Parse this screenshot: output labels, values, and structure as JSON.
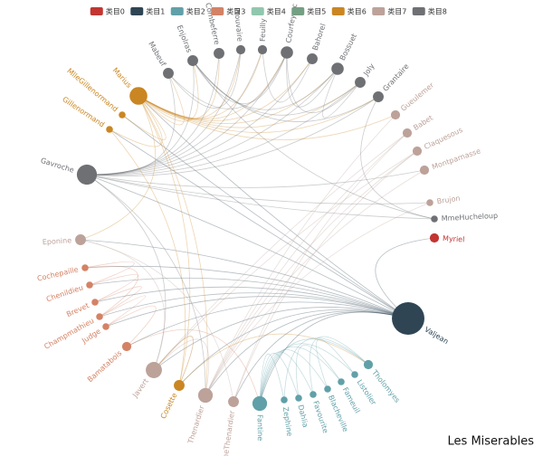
{
  "chart_data": {
    "type": "graph",
    "title": "Les Miserables",
    "categories": [
      {
        "name": "类目0",
        "color": "#c23531"
      },
      {
        "name": "类目1",
        "color": "#2f4554"
      },
      {
        "name": "类目2",
        "color": "#61a0a8"
      },
      {
        "name": "类目3",
        "color": "#d48265"
      },
      {
        "name": "类目4",
        "color": "#91c7ae"
      },
      {
        "name": "类目5",
        "color": "#749f83"
      },
      {
        "name": "类目6",
        "color": "#ca8622"
      },
      {
        "name": "类目7",
        "color": "#bda29a"
      },
      {
        "name": "类目8",
        "color": "#6e7074"
      }
    ],
    "nodes": [
      {
        "name": "Myriel",
        "category": 0,
        "value": 6
      },
      {
        "name": "MmeHucheloup",
        "category": 8,
        "value": 3
      },
      {
        "name": "Brujon",
        "category": 7,
        "value": 3
      },
      {
        "name": "Montparnasse",
        "category": 7,
        "value": 6
      },
      {
        "name": "Claquesous",
        "category": 7,
        "value": 6
      },
      {
        "name": "Babet",
        "category": 7,
        "value": 6
      },
      {
        "name": "Gueulemer",
        "category": 7,
        "value": 6
      },
      {
        "name": "Grantaire",
        "category": 8,
        "value": 8
      },
      {
        "name": "Joly",
        "category": 8,
        "value": 8
      },
      {
        "name": "Bossuet",
        "category": 8,
        "value": 10
      },
      {
        "name": "Bahorel",
        "category": 8,
        "value": 8
      },
      {
        "name": "Courfeyrac",
        "category": 8,
        "value": 10
      },
      {
        "name": "Feuilly",
        "category": 8,
        "value": 6
      },
      {
        "name": "Prouvaire",
        "category": 8,
        "value": 6
      },
      {
        "name": "Combeferre",
        "category": 8,
        "value": 8
      },
      {
        "name": "Enjolras",
        "category": 8,
        "value": 8
      },
      {
        "name": "Mabeuf",
        "category": 8,
        "value": 8
      },
      {
        "name": "Marius",
        "category": 6,
        "value": 17
      },
      {
        "name": "MlleGillenormand",
        "category": 6,
        "value": 3
      },
      {
        "name": "Gillenormand",
        "category": 6,
        "value": 3
      },
      {
        "name": "Gavroche",
        "category": 8,
        "value": 20
      },
      {
        "name": "Eponine",
        "category": 7,
        "value": 8
      },
      {
        "name": "Cochepaille",
        "category": 3,
        "value": 3
      },
      {
        "name": "Chenildieu",
        "category": 3,
        "value": 3
      },
      {
        "name": "Brevet",
        "category": 3,
        "value": 3
      },
      {
        "name": "Champmathieu",
        "category": 3,
        "value": 3
      },
      {
        "name": "Judge",
        "category": 3,
        "value": 3
      },
      {
        "name": "Bamatabois",
        "category": 3,
        "value": 6
      },
      {
        "name": "Javert",
        "category": 7,
        "value": 15
      },
      {
        "name": "Cosette",
        "category": 6,
        "value": 8
      },
      {
        "name": "Thenardier",
        "category": 7,
        "value": 13
      },
      {
        "name": "MmeThenardier",
        "category": 7,
        "value": 8
      },
      {
        "name": "Fantine",
        "category": 2,
        "value": 13
      },
      {
        "name": "Zephine",
        "category": 2,
        "value": 3
      },
      {
        "name": "Dahlia",
        "category": 2,
        "value": 3
      },
      {
        "name": "Favourite",
        "category": 2,
        "value": 3
      },
      {
        "name": "Blacheville",
        "category": 2,
        "value": 3
      },
      {
        "name": "Fameuil",
        "category": 2,
        "value": 3
      },
      {
        "name": "Listolier",
        "category": 2,
        "value": 3
      },
      {
        "name": "Tholomyes",
        "category": 2,
        "value": 6
      },
      {
        "name": "Valjean",
        "category": 1,
        "value": 36
      }
    ],
    "links": [
      [
        40,
        0
      ],
      [
        40,
        28
      ],
      [
        40,
        29
      ],
      [
        40,
        30
      ],
      [
        40,
        31
      ],
      [
        40,
        32
      ],
      [
        40,
        17
      ],
      [
        40,
        20
      ],
      [
        40,
        22
      ],
      [
        40,
        23
      ],
      [
        40,
        24
      ],
      [
        40,
        25
      ],
      [
        40,
        26
      ],
      [
        40,
        27
      ],
      [
        40,
        18
      ],
      [
        40,
        19
      ],
      [
        40,
        21
      ],
      [
        20,
        7
      ],
      [
        20,
        8
      ],
      [
        20,
        9
      ],
      [
        20,
        10
      ],
      [
        20,
        11
      ],
      [
        20,
        12
      ],
      [
        20,
        13
      ],
      [
        20,
        14
      ],
      [
        20,
        15
      ],
      [
        20,
        16
      ],
      [
        20,
        1
      ],
      [
        20,
        2
      ],
      [
        20,
        3
      ],
      [
        20,
        28
      ],
      [
        20,
        30
      ],
      [
        17,
        7
      ],
      [
        17,
        8
      ],
      [
        17,
        9
      ],
      [
        17,
        10
      ],
      [
        17,
        11
      ],
      [
        17,
        12
      ],
      [
        17,
        13
      ],
      [
        17,
        14
      ],
      [
        17,
        15
      ],
      [
        17,
        16
      ],
      [
        17,
        21
      ],
      [
        17,
        29
      ],
      [
        17,
        19
      ],
      [
        17,
        18
      ],
      [
        17,
        30
      ],
      [
        17,
        6
      ],
      [
        15,
        7
      ],
      [
        15,
        8
      ],
      [
        15,
        9
      ],
      [
        15,
        11
      ],
      [
        11,
        9
      ],
      [
        11,
        8
      ],
      [
        9,
        8
      ],
      [
        10,
        12
      ],
      [
        32,
        33
      ],
      [
        32,
        34
      ],
      [
        32,
        35
      ],
      [
        32,
        36
      ],
      [
        32,
        37
      ],
      [
        32,
        38
      ],
      [
        32,
        39
      ],
      [
        39,
        33
      ],
      [
        39,
        35
      ],
      [
        38,
        36
      ],
      [
        37,
        34
      ],
      [
        30,
        5
      ],
      [
        30,
        6
      ],
      [
        30,
        4
      ],
      [
        30,
        3
      ],
      [
        30,
        2
      ],
      [
        31,
        5
      ],
      [
        31,
        4
      ],
      [
        28,
        30
      ],
      [
        28,
        29
      ],
      [
        28,
        21
      ],
      [
        28,
        5
      ],
      [
        28,
        4
      ],
      [
        31,
        21
      ],
      [
        29,
        39
      ],
      [
        29,
        19
      ],
      [
        29,
        28
      ],
      [
        22,
        23
      ],
      [
        23,
        24
      ],
      [
        24,
        25
      ],
      [
        25,
        26
      ],
      [
        22,
        25
      ],
      [
        26,
        27
      ],
      [
        27,
        32
      ],
      [
        1,
        15
      ],
      [
        1,
        7
      ],
      [
        16,
        11
      ],
      [
        16,
        13
      ]
    ]
  }
}
